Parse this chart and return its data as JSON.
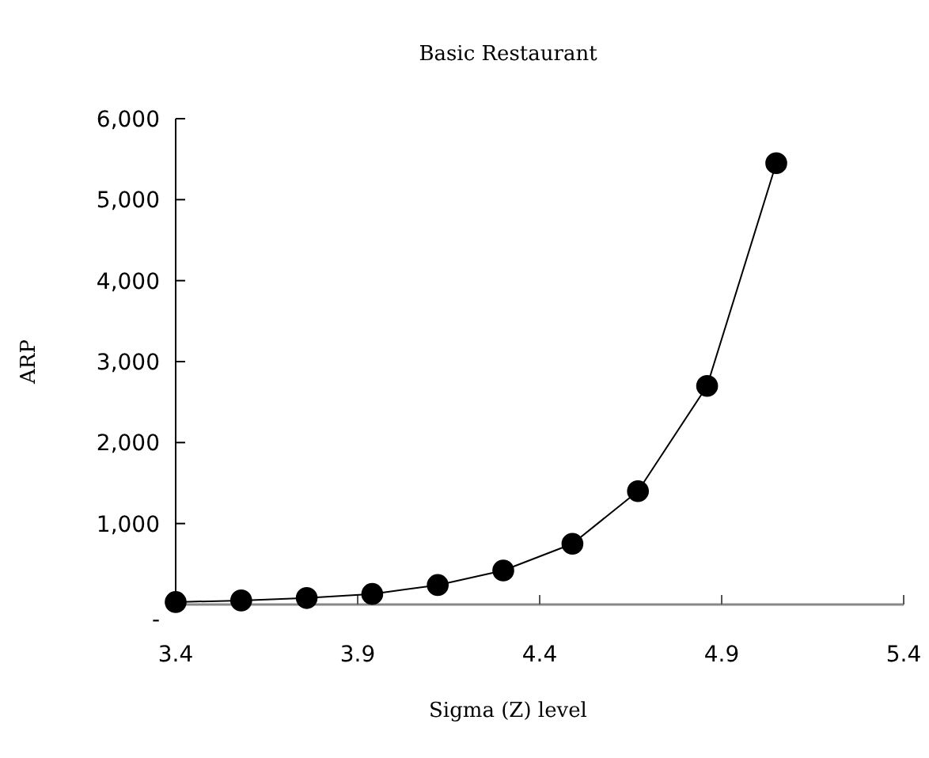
{
  "chart_data": {
    "type": "line",
    "title": "Basic Restaurant",
    "xlabel": "Sigma (Z) level",
    "ylabel": "ARP",
    "x": [
      3.4,
      3.58,
      3.76,
      3.94,
      4.12,
      4.3,
      4.49,
      4.67,
      4.86,
      5.05
    ],
    "series": [
      {
        "color": "#000000",
        "values": [
          30,
          50,
          80,
          130,
          240,
          420,
          750,
          1400,
          2700,
          5450
        ]
      }
    ],
    "xlim": [
      3.4,
      5.4
    ],
    "xticks": [
      3.4,
      3.9,
      4.4,
      4.9,
      5.4
    ],
    "ylim": [
      0,
      6000
    ],
    "yticks": [
      {
        "value": 0,
        "label": "-"
      },
      {
        "value": 1000,
        "label": "1,000"
      },
      {
        "value": 2000,
        "label": "2,000"
      },
      {
        "value": 3000,
        "label": "3,000"
      },
      {
        "value": 4000,
        "label": "4,000"
      },
      {
        "value": 5000,
        "label": "5,000"
      },
      {
        "value": 6000,
        "label": "6,000"
      }
    ],
    "marker": "circle",
    "line_style": "solid"
  }
}
